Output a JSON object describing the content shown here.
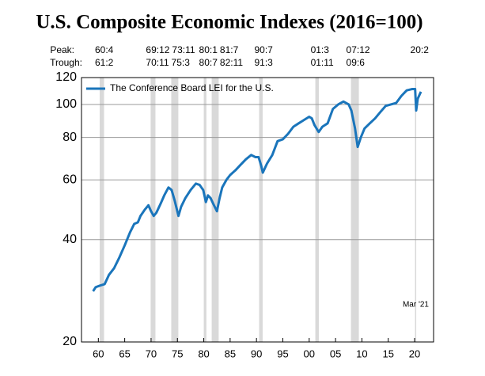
{
  "chart_data": {
    "type": "line",
    "title": "U.S. Composite Economic Indexes (2016=100)",
    "peak_label": "Peak:",
    "trough_label": "Trough:",
    "recessions": [
      {
        "peak": {
          "value": 1960.25,
          "label": "60:4"
        },
        "trough": {
          "value": 1961.08,
          "label": "61:2"
        }
      },
      {
        "peak": {
          "value": 1969.92,
          "label": "69:12"
        },
        "trough": {
          "value": 1970.83,
          "label": "70:11"
        }
      },
      {
        "peak": {
          "value": 1973.83,
          "label": "73:11"
        },
        "trough": {
          "value": 1975.17,
          "label": "75:3"
        }
      },
      {
        "peak": {
          "value": 1980.0,
          "label": "80:1"
        },
        "trough": {
          "value": 1980.5,
          "label": "80:7"
        }
      },
      {
        "peak": {
          "value": 1981.5,
          "label": "81:7"
        },
        "trough": {
          "value": 1982.83,
          "label": "82:11"
        }
      },
      {
        "peak": {
          "value": 1990.5,
          "label": "90:7"
        },
        "trough": {
          "value": 1991.17,
          "label": "91:3"
        }
      },
      {
        "peak": {
          "value": 2001.17,
          "label": "01:3"
        },
        "trough": {
          "value": 2001.83,
          "label": "01:11"
        }
      },
      {
        "peak": {
          "value": 2007.92,
          "label": "07:12"
        },
        "trough": {
          "value": 2009.42,
          "label": "09:6"
        }
      },
      {
        "peak": {
          "value": 2020.08,
          "label": "20:2"
        },
        "trough": {
          "value": 2020.25,
          "label": null
        }
      }
    ],
    "x": [
      1959,
      1959.5,
      1960.3,
      1961.2,
      1962,
      1963,
      1964,
      1965,
      1966,
      1966.8,
      1967.5,
      1968,
      1968.8,
      1969.5,
      1970,
      1970.5,
      1971,
      1971.8,
      1972.5,
      1973.3,
      1973.9,
      1974.5,
      1975.2,
      1975.7,
      1976.5,
      1977.5,
      1978.5,
      1979.2,
      1979.9,
      1980.4,
      1980.8,
      1981.3,
      1981.8,
      1982.5,
      1983,
      1983.5,
      1984.3,
      1985,
      1986,
      1987,
      1988,
      1989,
      1989.8,
      1990.4,
      1990.9,
      1991.2,
      1992,
      1993,
      1994,
      1995,
      1996,
      1997,
      1998,
      1999,
      2000,
      2000.5,
      2001,
      2001.8,
      2002.5,
      2003.5,
      2004.5,
      2005.5,
      2006.5,
      2007.5,
      2008,
      2008.7,
      2009.2,
      2009.8,
      2010.5,
      2011.5,
      2012.5,
      2013.5,
      2014.5,
      2015.5,
      2016.5,
      2017.5,
      2018.5,
      2019.5,
      2020.1,
      2020.3,
      2020.6,
      2021.2
    ],
    "series": [
      {
        "name": "The Conference Board LEI for the U.S.",
        "color": "#1a75bb",
        "values": [
          28.2,
          29,
          29.3,
          29.6,
          31.5,
          33,
          35.5,
          38.5,
          42,
          44.5,
          45,
          47,
          49,
          50.5,
          48.5,
          47,
          48,
          51,
          54,
          57,
          56,
          52,
          47,
          50,
          53,
          56,
          58.5,
          58,
          56,
          51.6,
          54,
          53,
          51,
          48.5,
          53,
          57,
          60,
          62,
          64,
          66.5,
          69,
          71,
          70,
          70,
          66,
          63,
          67,
          71,
          78,
          79,
          82,
          86,
          88,
          90,
          92,
          91,
          87,
          83,
          86,
          88,
          97,
          100,
          102,
          100,
          96,
          85,
          75,
          80,
          85,
          88,
          91,
          95,
          99,
          100,
          101,
          106,
          110,
          111,
          111,
          96,
          104,
          109
        ]
      }
    ],
    "xlim": [
      1956.8,
      2023.6
    ],
    "xticks": [
      {
        "value": 1960,
        "label": "60"
      },
      {
        "value": 1965,
        "label": "65"
      },
      {
        "value": 1970,
        "label": "70"
      },
      {
        "value": 1975,
        "label": "75"
      },
      {
        "value": 1980,
        "label": "80"
      },
      {
        "value": 1985,
        "label": "85"
      },
      {
        "value": 1990,
        "label": "90"
      },
      {
        "value": 1995,
        "label": "95"
      },
      {
        "value": 2000,
        "label": "00"
      },
      {
        "value": 2005,
        "label": "05"
      },
      {
        "value": 2010,
        "label": "10"
      },
      {
        "value": 2015,
        "label": "15"
      },
      {
        "value": 2020,
        "label": "20"
      }
    ],
    "ylim": [
      20,
      120
    ],
    "yticks": [
      20,
      40,
      60,
      80,
      100,
      120
    ],
    "log_scale": true,
    "grid": true,
    "legend": "upper left",
    "annotation": "Mar '21",
    "recession_color": "#d9d9d9"
  }
}
